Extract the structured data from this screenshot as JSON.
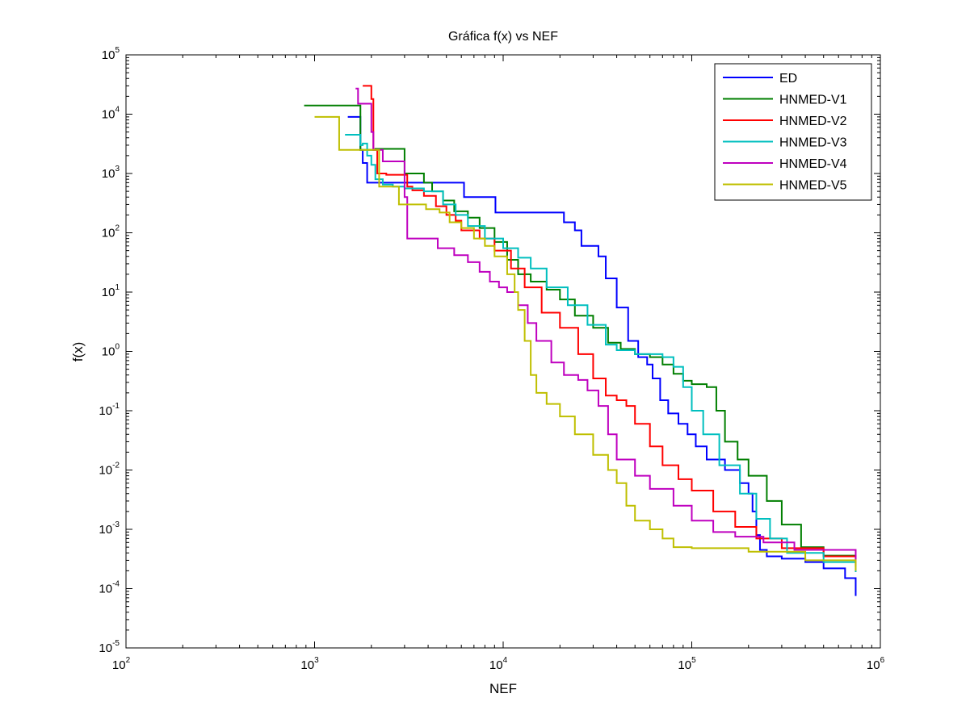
{
  "chart_data": {
    "type": "line",
    "title": "Gráfica f(x) vs NEF",
    "xlabel": "NEF",
    "ylabel": "f(x)",
    "xscale": "log",
    "yscale": "log",
    "xlim": [
      100,
      1000000
    ],
    "ylim": [
      1e-05,
      100000
    ],
    "x_ticks": [
      {
        "base": "10",
        "exp": "2",
        "value": 100
      },
      {
        "base": "10",
        "exp": "3",
        "value": 1000
      },
      {
        "base": "10",
        "exp": "4",
        "value": 10000
      },
      {
        "base": "10",
        "exp": "5",
        "value": 100000
      },
      {
        "base": "10",
        "exp": "6",
        "value": 1000000
      }
    ],
    "y_ticks": [
      {
        "base": "10",
        "exp": "-5",
        "value": 1e-05
      },
      {
        "base": "10",
        "exp": "-4",
        "value": 0.0001
      },
      {
        "base": "10",
        "exp": "-3",
        "value": 0.001
      },
      {
        "base": "10",
        "exp": "-2",
        "value": 0.01
      },
      {
        "base": "10",
        "exp": "-1",
        "value": 0.1
      },
      {
        "base": "10",
        "exp": "0",
        "value": 1
      },
      {
        "base": "10",
        "exp": "1",
        "value": 10
      },
      {
        "base": "10",
        "exp": "2",
        "value": 100
      },
      {
        "base": "10",
        "exp": "3",
        "value": 1000
      },
      {
        "base": "10",
        "exp": "4",
        "value": 10000
      },
      {
        "base": "10",
        "exp": "5",
        "value": 100000
      }
    ],
    "legend_position": "top-right",
    "series": [
      {
        "name": "ED",
        "color": "#0000ff",
        "step": true,
        "points": [
          [
            1500,
            9000
          ],
          [
            1700,
            9000
          ],
          [
            1750,
            2500
          ],
          [
            1800,
            1500
          ],
          [
            1900,
            700
          ],
          [
            2500,
            700
          ],
          [
            3500,
            700
          ],
          [
            6000,
            700
          ],
          [
            6200,
            400
          ],
          [
            9000,
            400
          ],
          [
            9100,
            220
          ],
          [
            20000,
            220
          ],
          [
            21000,
            150
          ],
          [
            24000,
            110
          ],
          [
            26000,
            60
          ],
          [
            30000,
            60
          ],
          [
            32000,
            40
          ],
          [
            35000,
            17
          ],
          [
            38000,
            17
          ],
          [
            40000,
            5.5
          ],
          [
            45000,
            5.5
          ],
          [
            46000,
            1.5
          ],
          [
            50000,
            1.5
          ],
          [
            52000,
            0.8
          ],
          [
            58000,
            0.6
          ],
          [
            62000,
            0.35
          ],
          [
            68000,
            0.15
          ],
          [
            75000,
            0.09
          ],
          [
            85000,
            0.06
          ],
          [
            95000,
            0.04
          ],
          [
            105000,
            0.025
          ],
          [
            120000,
            0.015
          ],
          [
            150000,
            0.01
          ],
          [
            180000,
            0.006
          ],
          [
            200000,
            0.004
          ],
          [
            210000,
            0.002
          ],
          [
            220000,
            0.0008
          ],
          [
            230000,
            0.00045
          ],
          [
            250000,
            0.00035
          ],
          [
            300000,
            0.00032
          ],
          [
            400000,
            0.00028
          ],
          [
            500000,
            0.00022
          ],
          [
            650000,
            0.00015
          ],
          [
            740000,
            7.5e-05
          ]
        ]
      },
      {
        "name": "HNMED-V1",
        "color": "#007f00",
        "step": true,
        "points": [
          [
            880,
            14000
          ],
          [
            1700,
            14000
          ],
          [
            1750,
            2500
          ],
          [
            2000,
            2500
          ],
          [
            2100,
            2600
          ],
          [
            2900,
            2600
          ],
          [
            3000,
            1000
          ],
          [
            3500,
            1000
          ],
          [
            3800,
            700
          ],
          [
            4200,
            500
          ],
          [
            4800,
            350
          ],
          [
            5500,
            230
          ],
          [
            6500,
            180
          ],
          [
            7500,
            120
          ],
          [
            9000,
            70
          ],
          [
            10500,
            35
          ],
          [
            12000,
            20
          ],
          [
            14000,
            15
          ],
          [
            17000,
            11
          ],
          [
            20000,
            7.5
          ],
          [
            24000,
            4
          ],
          [
            30000,
            2.5
          ],
          [
            36000,
            1.4
          ],
          [
            42000,
            1.1
          ],
          [
            50000,
            0.9
          ],
          [
            60000,
            0.8
          ],
          [
            70000,
            0.6
          ],
          [
            80000,
            0.42
          ],
          [
            90000,
            0.32
          ],
          [
            100000,
            0.28
          ],
          [
            110000,
            0.28
          ],
          [
            120000,
            0.25
          ],
          [
            135000,
            0.1
          ],
          [
            150000,
            0.03
          ],
          [
            175000,
            0.015
          ],
          [
            200000,
            0.008
          ],
          [
            250000,
            0.003
          ],
          [
            300000,
            0.0012
          ],
          [
            380000,
            0.0005
          ],
          [
            500000,
            0.00036
          ],
          [
            740000,
            0.00024
          ]
        ]
      },
      {
        "name": "HNMED-V2",
        "color": "#ff0000",
        "step": true,
        "points": [
          [
            1800,
            30000
          ],
          [
            1950,
            30000
          ],
          [
            2000,
            18000
          ],
          [
            2050,
            2500
          ],
          [
            2150,
            1000
          ],
          [
            2300,
            1000
          ],
          [
            2400,
            950
          ],
          [
            3000,
            950
          ],
          [
            3100,
            600
          ],
          [
            3300,
            520
          ],
          [
            3800,
            420
          ],
          [
            4400,
            280
          ],
          [
            5000,
            200
          ],
          [
            5600,
            160
          ],
          [
            6000,
            110
          ],
          [
            7500,
            80
          ],
          [
            9000,
            50
          ],
          [
            11000,
            25
          ],
          [
            13000,
            12
          ],
          [
            16000,
            4.5
          ],
          [
            20000,
            2.5
          ],
          [
            25000,
            0.9
          ],
          [
            30000,
            0.35
          ],
          [
            35000,
            0.18
          ],
          [
            40000,
            0.15
          ],
          [
            45000,
            0.12
          ],
          [
            50000,
            0.06
          ],
          [
            60000,
            0.025
          ],
          [
            70000,
            0.012
          ],
          [
            85000,
            0.007
          ],
          [
            100000,
            0.0045
          ],
          [
            130000,
            0.002
          ],
          [
            170000,
            0.0011
          ],
          [
            220000,
            0.0007
          ],
          [
            300000,
            0.00048
          ],
          [
            500000,
            0.00035
          ],
          [
            740000,
            0.00025
          ]
        ]
      },
      {
        "name": "HNMED-V3",
        "color": "#00bfbf",
        "step": true,
        "points": [
          [
            1450,
            4500
          ],
          [
            1700,
            4500
          ],
          [
            1750,
            3000
          ],
          [
            1800,
            3200
          ],
          [
            1900,
            2000
          ],
          [
            2000,
            1400
          ],
          [
            2100,
            800
          ],
          [
            2300,
            650
          ],
          [
            2600,
            600
          ],
          [
            3000,
            560
          ],
          [
            3800,
            500
          ],
          [
            4800,
            300
          ],
          [
            5600,
            200
          ],
          [
            6500,
            130
          ],
          [
            8000,
            80
          ],
          [
            10000,
            55
          ],
          [
            12000,
            38
          ],
          [
            14000,
            25
          ],
          [
            17000,
            12
          ],
          [
            22000,
            6
          ],
          [
            28000,
            2.8
          ],
          [
            35000,
            1.3
          ],
          [
            40000,
            1.05
          ],
          [
            50000,
            0.9
          ],
          [
            60000,
            0.9
          ],
          [
            70000,
            0.8
          ],
          [
            80000,
            0.55
          ],
          [
            90000,
            0.25
          ],
          [
            100000,
            0.1
          ],
          [
            115000,
            0.04
          ],
          [
            140000,
            0.012
          ],
          [
            180000,
            0.004
          ],
          [
            220000,
            0.0015
          ],
          [
            260000,
            0.0007
          ],
          [
            320000,
            0.0004
          ],
          [
            500000,
            0.00028
          ],
          [
            740000,
            0.00019
          ]
        ]
      },
      {
        "name": "HNMED-V4",
        "color": "#bf00bf",
        "step": true,
        "points": [
          [
            1650,
            27000
          ],
          [
            1700,
            15000
          ],
          [
            1850,
            15000
          ],
          [
            2000,
            5000
          ],
          [
            2050,
            2500
          ],
          [
            2300,
            1600
          ],
          [
            2900,
            1600
          ],
          [
            3000,
            400
          ],
          [
            3100,
            80
          ],
          [
            4000,
            80
          ],
          [
            4500,
            55
          ],
          [
            5500,
            42
          ],
          [
            6500,
            32
          ],
          [
            7500,
            22
          ],
          [
            8500,
            15
          ],
          [
            9500,
            12
          ],
          [
            10500,
            10
          ],
          [
            12000,
            6
          ],
          [
            13500,
            3
          ],
          [
            15000,
            1.5
          ],
          [
            18000,
            0.65
          ],
          [
            21000,
            0.4
          ],
          [
            25000,
            0.33
          ],
          [
            28000,
            0.22
          ],
          [
            32000,
            0.12
          ],
          [
            36000,
            0.04
          ],
          [
            40000,
            0.015
          ],
          [
            50000,
            0.008
          ],
          [
            60000,
            0.0048
          ],
          [
            80000,
            0.0025
          ],
          [
            100000,
            0.0014
          ],
          [
            130000,
            0.0009
          ],
          [
            170000,
            0.00075
          ],
          [
            240000,
            0.0006
          ],
          [
            350000,
            0.00045
          ],
          [
            740000,
            0.00023
          ]
        ]
      },
      {
        "name": "HNMED-V5",
        "color": "#bfbf00",
        "step": true,
        "points": [
          [
            1000,
            9000
          ],
          [
            1300,
            9000
          ],
          [
            1350,
            2500
          ],
          [
            2100,
            2500
          ],
          [
            2200,
            600
          ],
          [
            2700,
            600
          ],
          [
            2800,
            300
          ],
          [
            3700,
            300
          ],
          [
            3900,
            250
          ],
          [
            4600,
            220
          ],
          [
            5200,
            150
          ],
          [
            6000,
            120
          ],
          [
            7000,
            80
          ],
          [
            8000,
            60
          ],
          [
            9000,
            40
          ],
          [
            10500,
            20
          ],
          [
            11500,
            10
          ],
          [
            12000,
            5
          ],
          [
            13000,
            1.5
          ],
          [
            14000,
            0.4
          ],
          [
            15000,
            0.2
          ],
          [
            17000,
            0.13
          ],
          [
            20000,
            0.08
          ],
          [
            24000,
            0.04
          ],
          [
            30000,
            0.018
          ],
          [
            36000,
            0.01
          ],
          [
            40000,
            0.006
          ],
          [
            45000,
            0.0025
          ],
          [
            50000,
            0.0014
          ],
          [
            60000,
            0.001
          ],
          [
            70000,
            0.0007
          ],
          [
            80000,
            0.0005
          ],
          [
            100000,
            0.00048
          ],
          [
            200000,
            0.00042
          ],
          [
            400000,
            0.0003
          ],
          [
            740000,
            0.0002
          ]
        ]
      }
    ]
  }
}
